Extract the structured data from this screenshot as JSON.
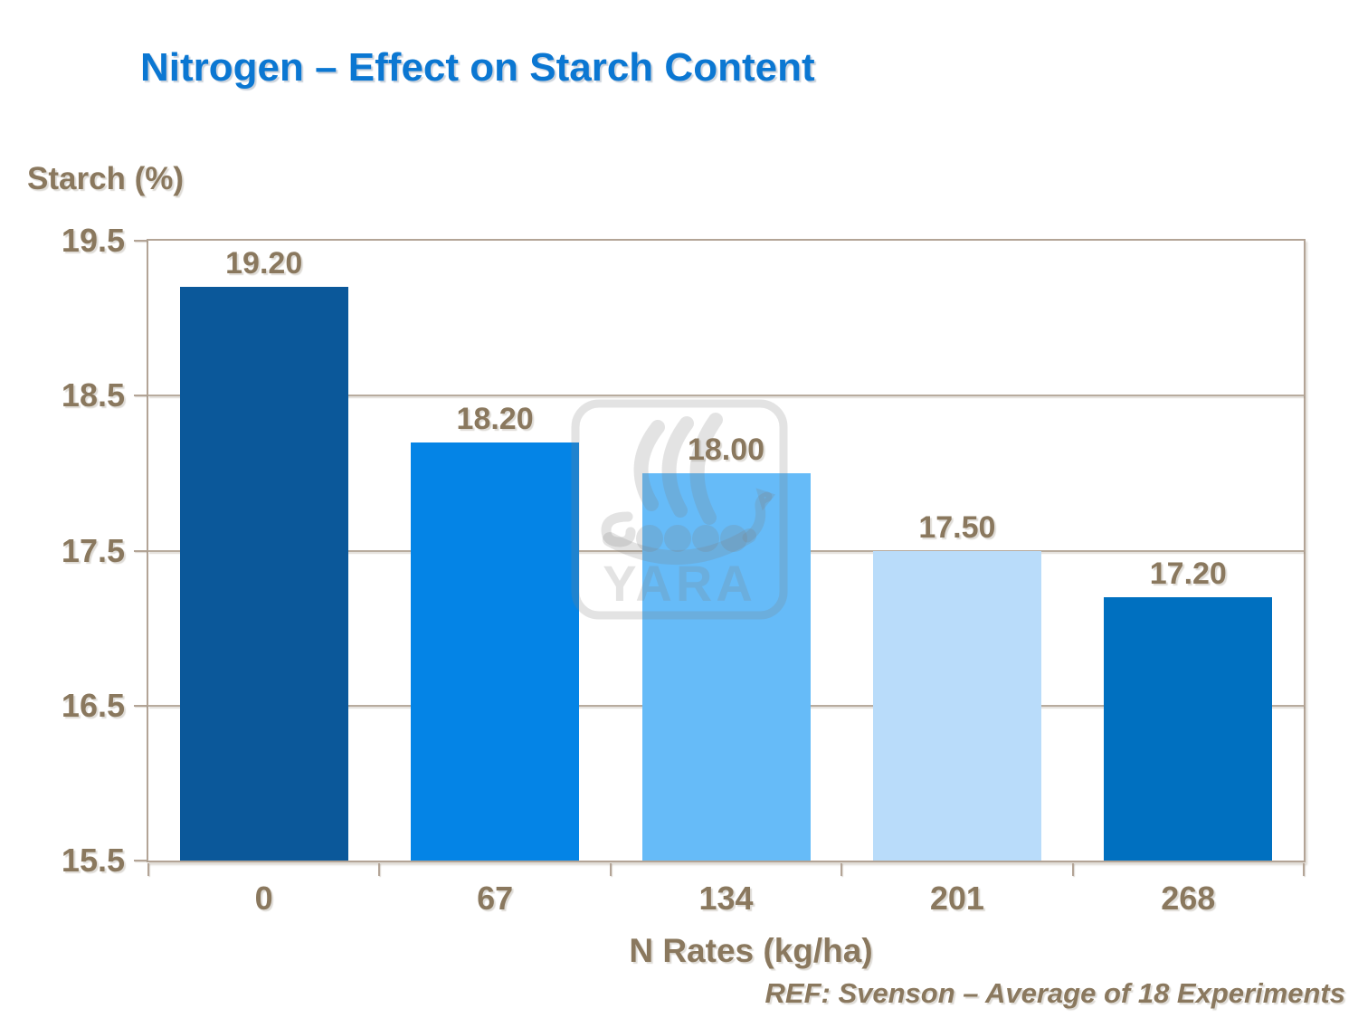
{
  "slide": {
    "title": "Nitrogen – Effect on Starch Content",
    "reference": "REF: Svenson – Average of 18 Experiments"
  },
  "watermark": {
    "name": "yara-viking-ship-logo",
    "text": "YARA",
    "color": "rgba(128,128,128,0.22)"
  },
  "colors": {
    "background": "#FFFFFF",
    "title": "#0B77D2",
    "labels": "#8A785E",
    "axis": "#B3A496"
  },
  "chart_data": {
    "type": "bar",
    "title": "Nitrogen – Effect on Starch Content",
    "xlabel": "N Rates (kg/ha)",
    "ylabel": "Starch (%)",
    "categories": [
      "0",
      "67",
      "134",
      "201",
      "268"
    ],
    "values": [
      19.2,
      18.2,
      18.0,
      17.5,
      17.2
    ],
    "bar_labels": [
      "19.20",
      "18.20",
      "18.00",
      "17.50",
      "17.20"
    ],
    "bar_colors": [
      "#0B589A",
      "#0484E6",
      "#66BBF8",
      "#B9DCFA",
      "#0070C0"
    ],
    "ylim": [
      15.5,
      19.5
    ],
    "ytick_labels": [
      "19.5",
      "18.5",
      "17.5",
      "16.5",
      "15.5"
    ],
    "grid": "horizontal",
    "legend": "none",
    "annotation": "REF: Svenson – Average of 18 Experiments"
  }
}
